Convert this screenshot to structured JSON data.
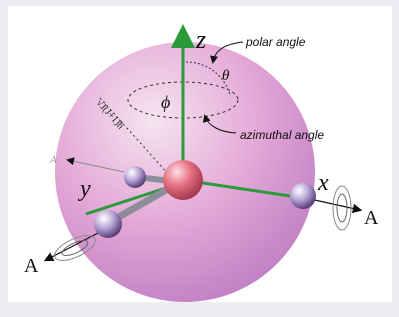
{
  "labels": {
    "z": "z",
    "polar_angle": "polar angle",
    "theta": "θ",
    "phi": "ϕ",
    "azimuthal_angle": "azimuthal angle",
    "radius": "√J(J+1)ħ",
    "x": "x",
    "y": "y",
    "a_right": "A",
    "a_left": "A",
    "a_back": "A"
  }
}
